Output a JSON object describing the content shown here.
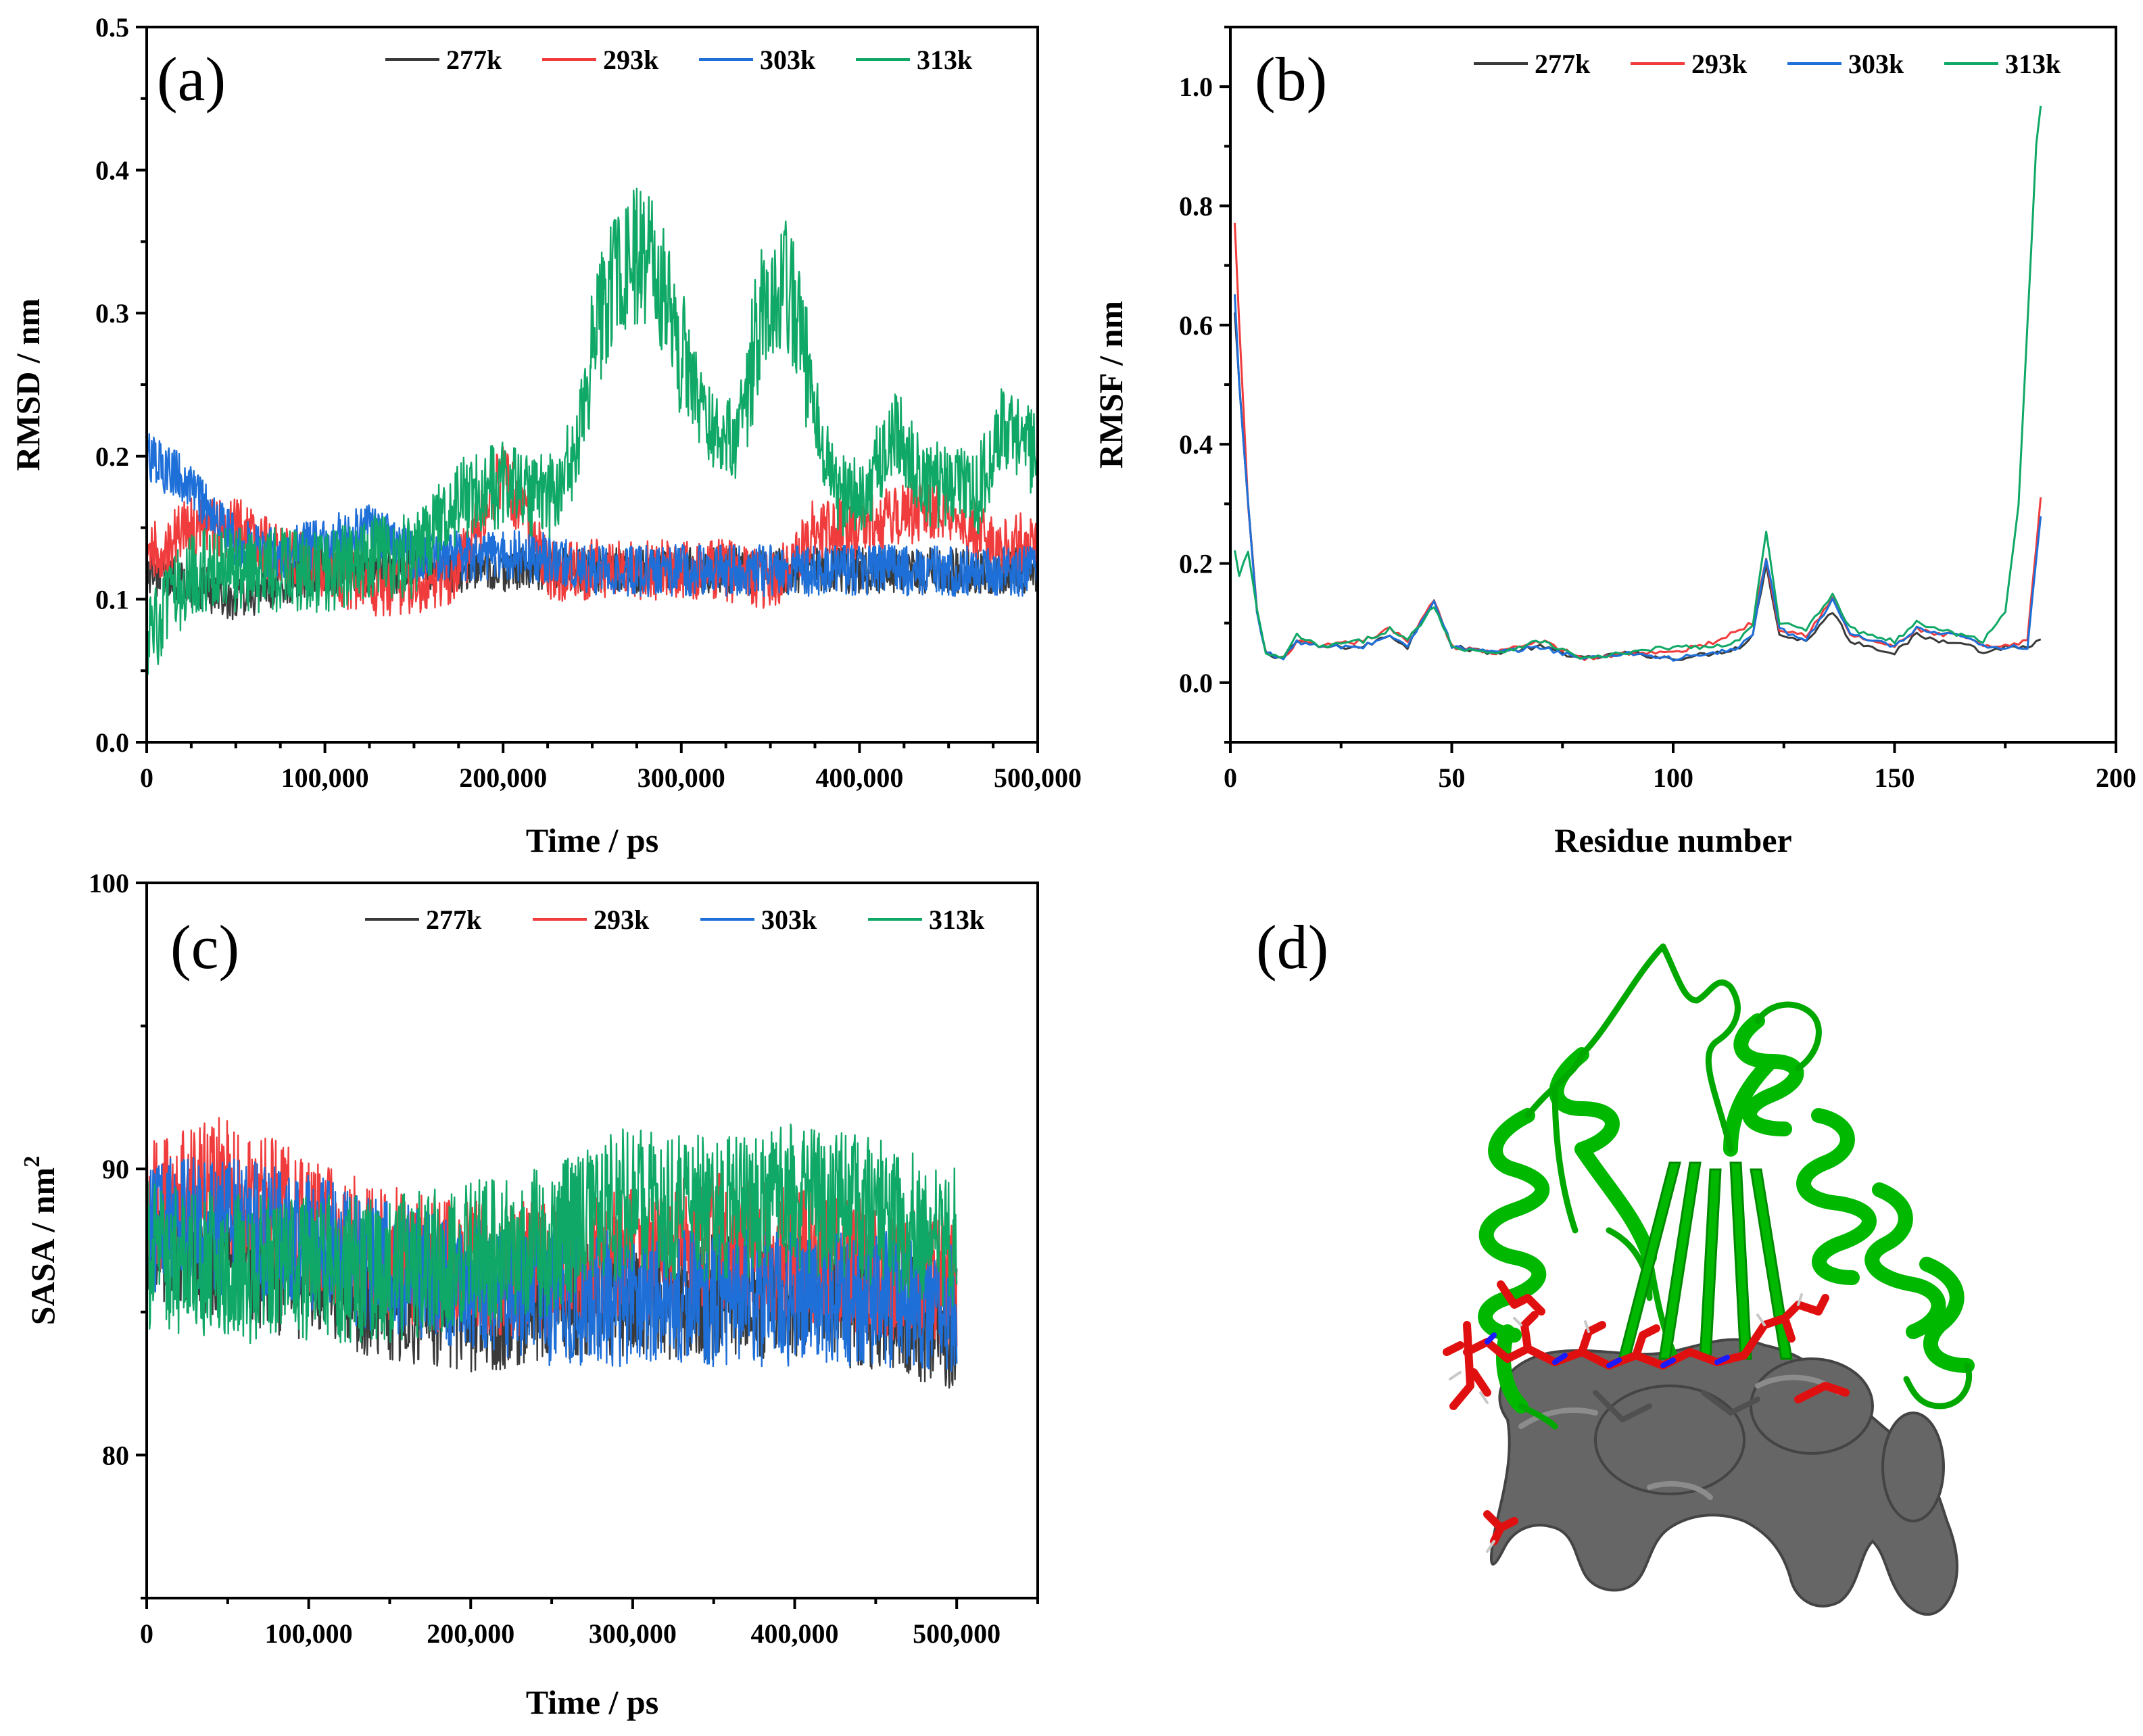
{
  "colors": {
    "277k": "#3a3a3a",
    "293k": "#f03c3c",
    "303k": "#1e6fd8",
    "313k": "#10a866",
    "protein": "#00b800",
    "ligand": "#e01010",
    "surface": "#6a6a6a"
  },
  "chart_data": [
    {
      "panel": "(a)",
      "type": "line",
      "xlabel": "Time / ps",
      "ylabel": "RMSD / nm",
      "xlim": [
        0,
        500000
      ],
      "ylim": [
        0,
        0.5
      ],
      "xticks": [
        "0",
        "100,000",
        "200,000",
        "300,000",
        "400,000",
        "500,000"
      ],
      "yticks": [
        "0.0",
        "0.1",
        "0.2",
        "0.3",
        "0.4",
        "0.5"
      ],
      "legend": [
        "277k",
        "293k",
        "303k",
        "313k"
      ],
      "series": [
        {
          "name": "277k",
          "x": [
            0,
            25000,
            50000,
            75000,
            100000,
            125000,
            150000,
            175000,
            200000,
            225000,
            250000,
            275000,
            300000,
            325000,
            350000,
            375000,
            400000,
            425000,
            450000,
            475000,
            500000
          ],
          "y": [
            0.12,
            0.11,
            0.1,
            0.11,
            0.12,
            0.12,
            0.12,
            0.12,
            0.12,
            0.12,
            0.12,
            0.12,
            0.12,
            0.12,
            0.12,
            0.12,
            0.12,
            0.12,
            0.12,
            0.12,
            0.12
          ]
        },
        {
          "name": "293k",
          "x": [
            0,
            25000,
            50000,
            75000,
            100000,
            125000,
            150000,
            175000,
            200000,
            225000,
            250000,
            275000,
            300000,
            325000,
            350000,
            375000,
            400000,
            425000,
            450000,
            475000,
            500000
          ],
          "y": [
            0.13,
            0.15,
            0.15,
            0.13,
            0.12,
            0.11,
            0.11,
            0.12,
            0.19,
            0.12,
            0.12,
            0.12,
            0.12,
            0.12,
            0.11,
            0.15,
            0.15,
            0.16,
            0.16,
            0.14,
            0.14
          ]
        },
        {
          "name": "303k",
          "x": [
            0,
            25000,
            50000,
            75000,
            100000,
            125000,
            150000,
            175000,
            200000,
            225000,
            250000,
            275000,
            300000,
            325000,
            350000,
            375000,
            400000,
            425000,
            450000,
            475000,
            500000
          ],
          "y": [
            0.2,
            0.18,
            0.14,
            0.13,
            0.14,
            0.15,
            0.13,
            0.13,
            0.13,
            0.13,
            0.12,
            0.12,
            0.12,
            0.12,
            0.12,
            0.12,
            0.12,
            0.12,
            0.12,
            0.12,
            0.12
          ]
        },
        {
          "name": "313k",
          "x": [
            0,
            25000,
            50000,
            75000,
            100000,
            125000,
            150000,
            175000,
            200000,
            225000,
            240000,
            255000,
            270000,
            285000,
            300000,
            315000,
            330000,
            345000,
            360000,
            375000,
            390000,
            405000,
            420000,
            435000,
            450000,
            465000,
            480000,
            500000
          ],
          "y": [
            0.07,
            0.12,
            0.12,
            0.12,
            0.12,
            0.13,
            0.13,
            0.17,
            0.18,
            0.17,
            0.2,
            0.3,
            0.34,
            0.34,
            0.27,
            0.22,
            0.21,
            0.3,
            0.32,
            0.23,
            0.17,
            0.18,
            0.22,
            0.18,
            0.18,
            0.17,
            0.22,
            0.2
          ]
        }
      ]
    },
    {
      "panel": "(b)",
      "type": "line",
      "xlabel": "Residue number",
      "ylabel": "RMSF / nm",
      "xlim": [
        0,
        200
      ],
      "ylim": [
        -0.1,
        1.1
      ],
      "xticks": [
        "0",
        "50",
        "100",
        "150",
        "200"
      ],
      "yticks": [
        "0.0",
        "0.2",
        "0.4",
        "0.6",
        "0.8",
        "1.0"
      ],
      "legend": [
        "277k",
        "293k",
        "303k",
        "313k"
      ],
      "series": [
        {
          "name": "277k",
          "x": [
            1,
            2,
            4,
            6,
            8,
            12,
            15,
            20,
            30,
            36,
            40,
            46,
            50,
            60,
            70,
            80,
            90,
            100,
            110,
            115,
            118,
            121,
            124,
            130,
            136,
            140,
            150,
            155,
            160,
            165,
            170,
            175,
            180,
            183
          ],
          "y": [
            0.62,
            0.5,
            0.3,
            0.12,
            0.05,
            0.04,
            0.07,
            0.06,
            0.06,
            0.08,
            0.06,
            0.14,
            0.06,
            0.05,
            0.06,
            0.04,
            0.05,
            0.04,
            0.05,
            0.06,
            0.08,
            0.2,
            0.08,
            0.07,
            0.12,
            0.07,
            0.05,
            0.08,
            0.07,
            0.07,
            0.05,
            0.06,
            0.06,
            0.07
          ]
        },
        {
          "name": "293k",
          "x": [
            1,
            2,
            4,
            6,
            8,
            12,
            15,
            20,
            30,
            36,
            40,
            46,
            50,
            60,
            70,
            80,
            90,
            100,
            110,
            115,
            118,
            121,
            124,
            130,
            136,
            140,
            150,
            155,
            160,
            165,
            170,
            175,
            180,
            183
          ],
          "y": [
            0.77,
            0.6,
            0.3,
            0.12,
            0.05,
            0.04,
            0.07,
            0.06,
            0.07,
            0.09,
            0.07,
            0.14,
            0.06,
            0.05,
            0.07,
            0.04,
            0.05,
            0.05,
            0.07,
            0.09,
            0.1,
            0.21,
            0.09,
            0.08,
            0.14,
            0.08,
            0.06,
            0.09,
            0.08,
            0.08,
            0.06,
            0.06,
            0.07,
            0.31
          ]
        },
        {
          "name": "303k",
          "x": [
            1,
            2,
            4,
            6,
            8,
            12,
            15,
            20,
            30,
            36,
            40,
            46,
            50,
            60,
            70,
            80,
            90,
            100,
            110,
            115,
            118,
            121,
            124,
            130,
            136,
            140,
            150,
            155,
            160,
            165,
            170,
            175,
            180,
            183
          ],
          "y": [
            0.65,
            0.5,
            0.3,
            0.12,
            0.05,
            0.04,
            0.07,
            0.06,
            0.06,
            0.08,
            0.06,
            0.14,
            0.06,
            0.05,
            0.06,
            0.04,
            0.05,
            0.04,
            0.05,
            0.06,
            0.08,
            0.21,
            0.09,
            0.07,
            0.14,
            0.08,
            0.06,
            0.09,
            0.08,
            0.08,
            0.06,
            0.06,
            0.06,
            0.28
          ]
        },
        {
          "name": "313k",
          "x": [
            1,
            2,
            4,
            6,
            8,
            12,
            15,
            20,
            30,
            36,
            40,
            46,
            50,
            60,
            70,
            80,
            90,
            100,
            110,
            115,
            118,
            121,
            124,
            130,
            136,
            140,
            150,
            155,
            160,
            165,
            170,
            175,
            178,
            180,
            182,
            183
          ],
          "y": [
            0.22,
            0.18,
            0.22,
            0.12,
            0.05,
            0.04,
            0.08,
            0.06,
            0.07,
            0.09,
            0.07,
            0.13,
            0.06,
            0.05,
            0.07,
            0.04,
            0.05,
            0.06,
            0.06,
            0.07,
            0.1,
            0.25,
            0.1,
            0.09,
            0.15,
            0.09,
            0.07,
            0.1,
            0.09,
            0.08,
            0.07,
            0.12,
            0.3,
            0.6,
            0.9,
            0.97
          ]
        }
      ]
    },
    {
      "panel": "(c)",
      "type": "line",
      "xlabel": "Time / ps",
      "ylabel": "SASA / nm",
      "ylabel_sup": "2",
      "xlim": [
        0,
        550000
      ],
      "ylim": [
        75,
        100
      ],
      "xticks": [
        "0",
        "100,000",
        "200,000",
        "300,000",
        "400,000",
        "500,000"
      ],
      "yticks": [
        "80",
        "90",
        "100"
      ],
      "legend": [
        "277k",
        "293k",
        "303k",
        "313k"
      ],
      "series": [
        {
          "name": "277k",
          "x": [
            0,
            50000,
            100000,
            150000,
            200000,
            250000,
            300000,
            350000,
            400000,
            450000,
            500000
          ],
          "y": [
            87.5,
            87.0,
            86.0,
            85.5,
            85.0,
            85.5,
            85.5,
            85.5,
            85.5,
            85.0,
            84.5
          ]
        },
        {
          "name": "293k",
          "x": [
            0,
            50000,
            100000,
            150000,
            200000,
            250000,
            300000,
            350000,
            400000,
            450000,
            500000
          ],
          "y": [
            88.5,
            89.5,
            88.0,
            87.0,
            86.5,
            86.5,
            87.0,
            87.5,
            87.0,
            86.5,
            86.0
          ]
        },
        {
          "name": "303k",
          "x": [
            0,
            50000,
            100000,
            150000,
            200000,
            250000,
            300000,
            350000,
            400000,
            450000,
            500000
          ],
          "y": [
            88.0,
            88.0,
            87.5,
            86.5,
            86.0,
            85.5,
            85.5,
            85.5,
            85.5,
            85.5,
            85.0
          ]
        },
        {
          "name": "313k",
          "x": [
            0,
            50000,
            100000,
            150000,
            200000,
            250000,
            300000,
            350000,
            400000,
            450000,
            500000
          ],
          "y": [
            87.0,
            86.5,
            86.5,
            86.5,
            87.0,
            87.5,
            89.0,
            88.5,
            89.0,
            88.5,
            87.5
          ]
        }
      ]
    }
  ],
  "panel_d": {
    "label": "(d)"
  }
}
